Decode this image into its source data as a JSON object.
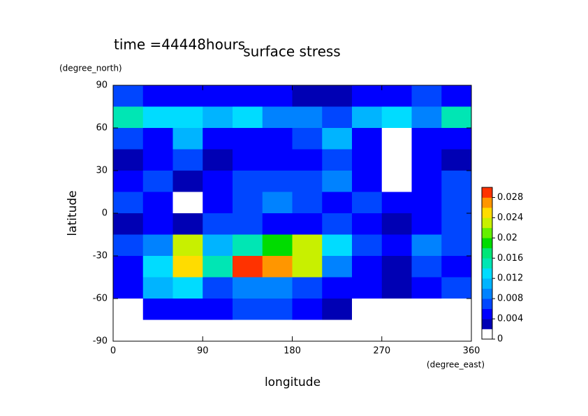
{
  "chart_data": {
    "type": "heatmap",
    "title": "surface stress",
    "subtitle": "time =44448hours",
    "x_label": "longitude",
    "x_unit": "(degree_east)",
    "y_label": "latitude",
    "y_unit": "(degree_north)",
    "xlim": [
      0,
      360
    ],
    "xticks": [
      0,
      90,
      180,
      270,
      360
    ],
    "ylim": [
      -90,
      90
    ],
    "yticks": [
      -90,
      -60,
      -30,
      0,
      30,
      60,
      90
    ],
    "clim": [
      0,
      0.03
    ],
    "cticks": [
      0,
      0.004,
      0.008,
      0.012,
      0.016,
      0.02,
      0.024,
      0.028
    ],
    "colors": [
      "#ffffff",
      "#0000b4",
      "#0000ff",
      "#0046ff",
      "#0082ff",
      "#00b4ff",
      "#00dcff",
      "#00e6b4",
      "#00e678",
      "#00dc00",
      "#64f000",
      "#c8f000",
      "#ffdc00",
      "#ff9600",
      "#ff3200"
    ],
    "z": [
      [
        0.006,
        0.005,
        0.005,
        0.004,
        0.004,
        0.004,
        0.003,
        0.003,
        0.004,
        0.005,
        0.006,
        0.005
      ],
      [
        0.014,
        0.012,
        0.012,
        0.01,
        0.012,
        0.008,
        0.008,
        0.006,
        0.01,
        0.012,
        0.008,
        0.014
      ],
      [
        0.006,
        0.004,
        0.01,
        0.005,
        0.005,
        0.005,
        0.006,
        0.01,
        0.004,
        0,
        0.005,
        0.004
      ],
      [
        0.003,
        0.004,
        0.006,
        0.003,
        0.004,
        0.005,
        0.005,
        0.006,
        0.005,
        0,
        0.004,
        0.002
      ],
      [
        0.004,
        0.006,
        0.002,
        0.005,
        0.007,
        0.006,
        0.006,
        0.008,
        0.004,
        0,
        0.004,
        0.006
      ],
      [
        0.006,
        0.004,
        0.001,
        0.004,
        0.006,
        0.008,
        0.006,
        0.004,
        0.006,
        0.004,
        0.004,
        0.006
      ],
      [
        0.003,
        0.005,
        0.002,
        0.006,
        0.006,
        0.005,
        0.005,
        0.006,
        0.004,
        0.003,
        0.005,
        0.006
      ],
      [
        0.007,
        0.008,
        0.022,
        0.01,
        0.015,
        0.018,
        0.022,
        0.012,
        0.006,
        0.004,
        0.008,
        0.006
      ],
      [
        0.004,
        0.012,
        0.024,
        0.014,
        0.028,
        0.026,
        0.022,
        0.008,
        0.004,
        0.002,
        0.006,
        0.004
      ],
      [
        0.004,
        0.01,
        0.012,
        0.006,
        0.008,
        0.008,
        0.006,
        0.005,
        0.004,
        0.002,
        0.005,
        0.006
      ],
      [
        0,
        0.004,
        0.005,
        0.005,
        0.006,
        0.006,
        0.004,
        0.003,
        0,
        0,
        0,
        0
      ],
      [
        0,
        0,
        0,
        0,
        0,
        0,
        0,
        0,
        0,
        0,
        0,
        0
      ]
    ]
  }
}
